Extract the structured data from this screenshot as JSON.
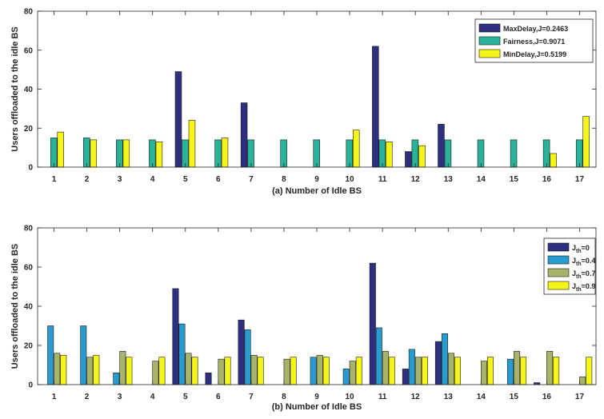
{
  "chart_data": [
    {
      "type": "bar",
      "xlabel": "(a) Number of Idle BS",
      "ylabel": "Users offloaded to the idle BS",
      "ylim": [
        0,
        80
      ],
      "yticks": [
        0,
        20,
        40,
        60,
        80
      ],
      "categories": [
        "1",
        "2",
        "3",
        "4",
        "5",
        "6",
        "7",
        "8",
        "9",
        "10",
        "11",
        "12",
        "13",
        "14",
        "15",
        "16",
        "17"
      ],
      "grid": false,
      "legend_position": "top-right",
      "series": [
        {
          "name": "MaxDelay,J=0.2463",
          "color": "#2e2f7e",
          "values": [
            0,
            0,
            0,
            0,
            49,
            0,
            33,
            0,
            0,
            0,
            62,
            8,
            22,
            0,
            0,
            0,
            0
          ]
        },
        {
          "name": "Fairness,J=0.9071",
          "color": "#2ab39b",
          "values": [
            15,
            15,
            14,
            14,
            14,
            14,
            14,
            14,
            14,
            14,
            14,
            14,
            14,
            14,
            14,
            14,
            14
          ]
        },
        {
          "name": "MinDelay,J=0.5199",
          "color": "#f5f51a",
          "values": [
            18,
            14,
            14,
            13,
            24,
            15,
            0,
            0,
            0,
            19,
            13,
            11,
            0,
            0,
            0,
            7,
            26
          ]
        }
      ]
    },
    {
      "type": "bar",
      "xlabel": "(b) Number of Idle BS",
      "ylabel": "Users offloaded to the idle BS",
      "ylim": [
        0,
        80
      ],
      "yticks": [
        0,
        20,
        40,
        60,
        80
      ],
      "categories": [
        "1",
        "2",
        "3",
        "4",
        "5",
        "6",
        "7",
        "8",
        "9",
        "10",
        "11",
        "12",
        "13",
        "14",
        "15",
        "16",
        "17"
      ],
      "grid": false,
      "legend_position": "top-right",
      "series": [
        {
          "name": "J",
          "subscript": "th",
          "suffix": "=0",
          "color": "#2e2f7e",
          "values": [
            0,
            0,
            0,
            0,
            49,
            6,
            33,
            0,
            0,
            0,
            62,
            8,
            22,
            0,
            0,
            1,
            0
          ]
        },
        {
          "name": "J",
          "subscript": "th",
          "suffix": "=0.4",
          "color": "#2a9bd1",
          "values": [
            30,
            30,
            6,
            0,
            31,
            0,
            28,
            0,
            14,
            8,
            29,
            18,
            26,
            0,
            13,
            0,
            0
          ]
        },
        {
          "name": "J",
          "subscript": "th",
          "suffix": "=0.7",
          "color": "#a8b46a",
          "values": [
            16,
            14,
            17,
            12,
            16,
            13,
            15,
            13,
            15,
            12,
            17,
            14,
            16,
            12,
            17,
            17,
            4
          ]
        },
        {
          "name": "J",
          "subscript": "th",
          "suffix": "=0.9",
          "color": "#f5f51a",
          "values": [
            15,
            15,
            14,
            14,
            14,
            14,
            14,
            14,
            14,
            14,
            14,
            14,
            14,
            14,
            14,
            14,
            14
          ]
        }
      ]
    }
  ]
}
